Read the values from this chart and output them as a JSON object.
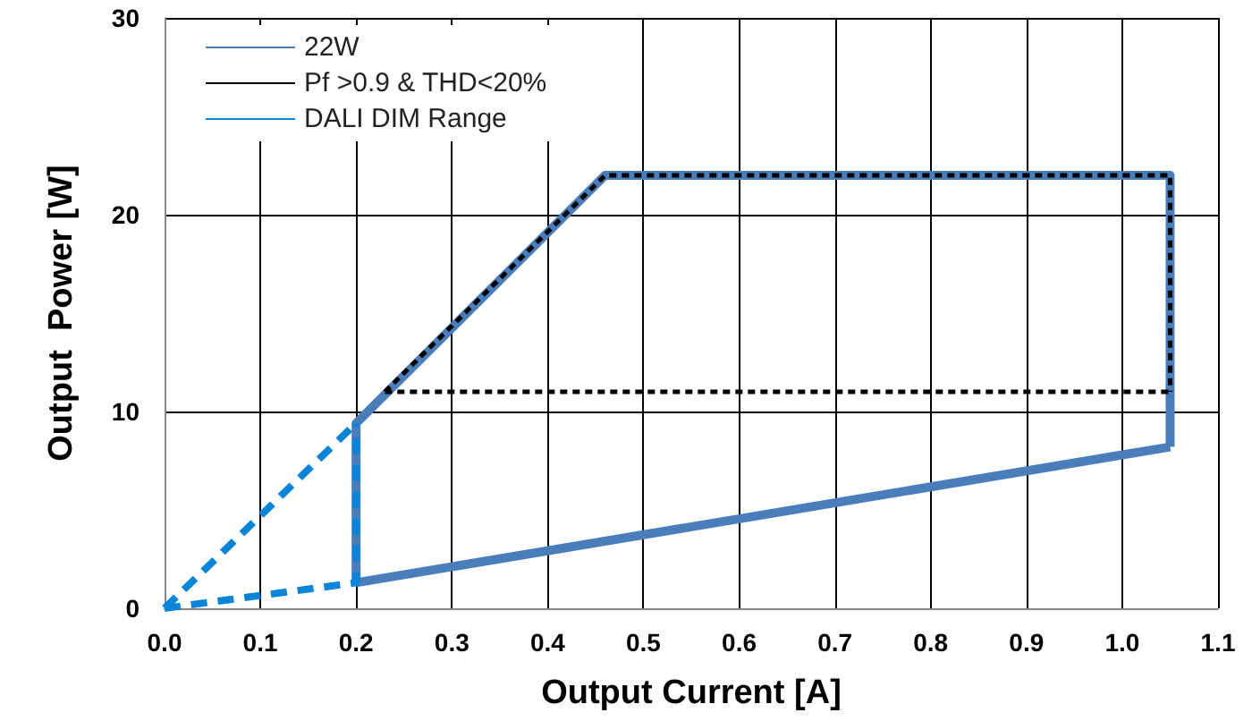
{
  "chart_data": {
    "type": "line",
    "xlabel": "Output Current [A]",
    "ylabel": "Output  Power [W]",
    "series": [
      {
        "name": "22W",
        "color": "#4a7ebb",
        "line_style": "solid",
        "x": [
          0.2,
          0.2,
          0.46,
          1.05,
          1.05,
          null,
          0.2,
          1.05
        ],
        "values": [
          1.3,
          9.4,
          22,
          22,
          8.2,
          null,
          1.3,
          8.2
        ]
      },
      {
        "name": "Pf >0.9 & THD<20%",
        "color": "#000000",
        "line_style": "dotted",
        "x": [
          0.23,
          0.46,
          1.05,
          1.05,
          null,
          0.23,
          1.05
        ],
        "values": [
          11,
          22,
          22,
          11,
          null,
          11,
          11
        ]
      },
      {
        "name": "DALI DIM Range",
        "color": "#0a84d8",
        "line_style": "dashed",
        "x": [
          0,
          0.2,
          null,
          0,
          0.2,
          0.2
        ],
        "values": [
          0,
          9.4,
          null,
          0,
          1.3,
          9.4
        ]
      }
    ],
    "xlim": [
      0,
      1.1
    ],
    "xticks": [
      {
        "value": 0,
        "label": "0.0"
      },
      0.1,
      0.2,
      0.3,
      0.4,
      0.5,
      0.6,
      0.7,
      0.8,
      0.9,
      {
        "value": 1,
        "label": "1.0"
      },
      1.1
    ],
    "ylim": [
      0,
      30
    ],
    "yticks": [
      0,
      10,
      20,
      30
    ],
    "grid": true,
    "legend": "top left",
    "marker": "none"
  }
}
